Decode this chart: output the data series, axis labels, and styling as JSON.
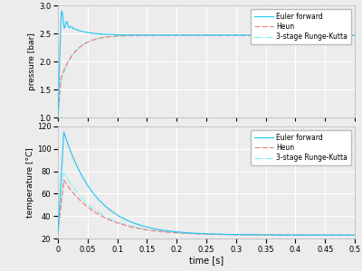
{
  "xlabel": "time [s]",
  "ylabel_top": "pressure [bar]",
  "ylabel_bottom": "temperature [°C]",
  "xlim": [
    0,
    0.5
  ],
  "pressure_ylim": [
    1,
    3
  ],
  "temperature_ylim": [
    20,
    120
  ],
  "pressure_yticks": [
    1.0,
    1.5,
    2.0,
    2.5,
    3.0
  ],
  "temperature_yticks": [
    20,
    40,
    60,
    80,
    100,
    120
  ],
  "xticks": [
    0,
    0.05,
    0.1,
    0.15,
    0.2,
    0.25,
    0.3,
    0.35,
    0.4,
    0.45,
    0.5
  ],
  "colors": {
    "euler": "#26c6f4",
    "heun": "#f47a7a",
    "rk3": "#7af4f4"
  },
  "legend_labels": [
    "Euler forward",
    "Heun",
    "3-stage Runge-Kutta"
  ],
  "bg_color": "#ececec",
  "grid_color": "#ffffff",
  "p_ss": 2.47,
  "T_ss": 23.0,
  "T_euler_peak": 115.0,
  "T_heun_peak": 72.0,
  "T_rk3_peak": 79.0,
  "tau_T_euler": 0.055,
  "tau_T_heun": 0.06,
  "tau_T_rk3": 0.058
}
